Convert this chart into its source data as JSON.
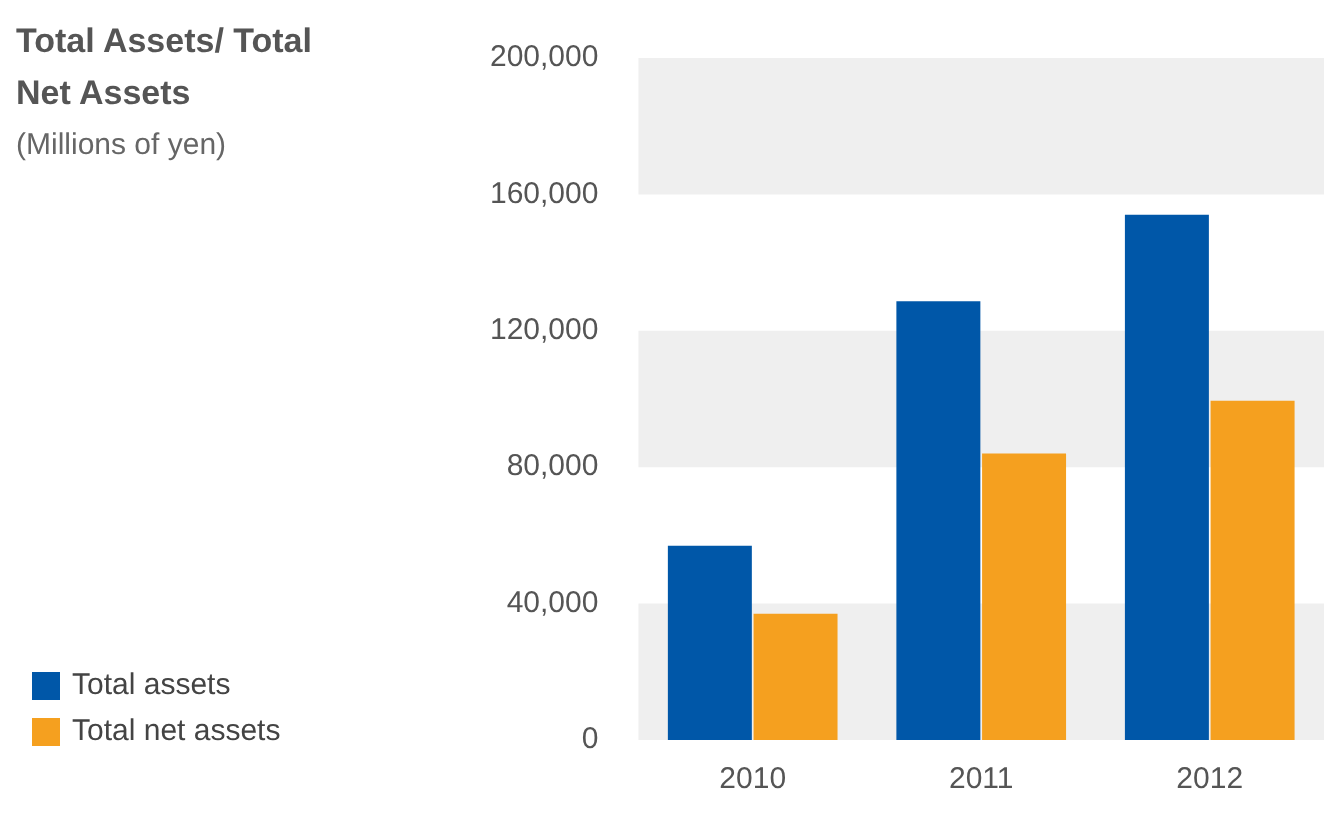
{
  "chart_data": {
    "type": "bar",
    "title": "Total Assets/ Total Net Assets",
    "subtitle": "(Millions of yen)",
    "categories": [
      "2010",
      "2011",
      "2012"
    ],
    "series": [
      {
        "name": "Total assets",
        "color": "#0057a8",
        "values": [
          57000,
          128700,
          154000
        ]
      },
      {
        "name": "Total net assets",
        "color": "#f5a01f",
        "values": [
          37000,
          84000,
          99500
        ]
      }
    ],
    "ylim": [
      0,
      200000
    ],
    "yticks": [
      {
        "value": 0,
        "label": "0"
      },
      {
        "value": 40000,
        "label": "40,000"
      },
      {
        "value": 80000,
        "label": "80,000"
      },
      {
        "value": 120000,
        "label": "120,000"
      },
      {
        "value": 160000,
        "label": "160,000"
      },
      {
        "value": 200000,
        "label": "200,000"
      }
    ],
    "bands": [
      {
        "axis": "y",
        "from": 0,
        "to": 40000,
        "color": "#efefef"
      },
      {
        "axis": "y",
        "from": 80000,
        "to": 120000,
        "color": "#efefef"
      },
      {
        "axis": "y",
        "from": 160000,
        "to": 200000,
        "color": "#efefef"
      }
    ],
    "legend": "bottom left"
  }
}
